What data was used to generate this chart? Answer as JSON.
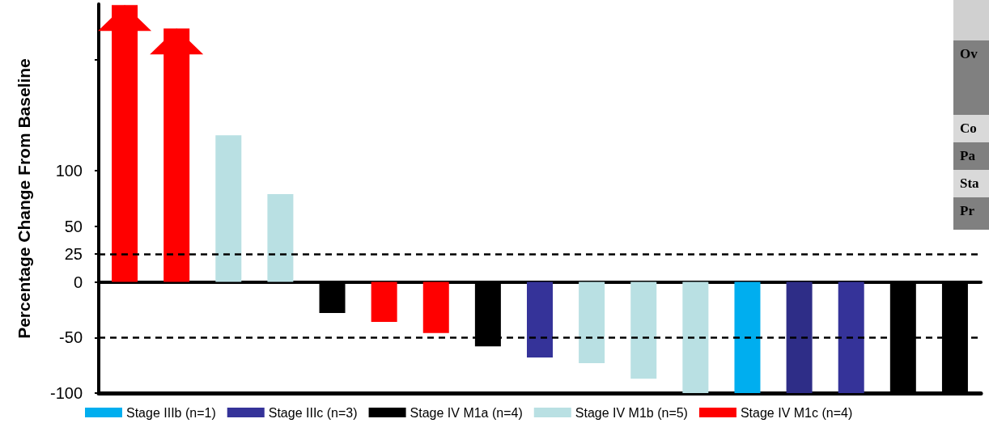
{
  "chart_data": {
    "type": "bar",
    "ylabel": "Percentage Change From Baseline",
    "categories": [
      null,
      null,
      null,
      null,
      null,
      null,
      null,
      null,
      null,
      null,
      null,
      null,
      null,
      null,
      null,
      null,
      null
    ],
    "stacked": true,
    "series": [
      {
        "name": "Stage IIIb (n=1)",
        "color": "#00aeef",
        "values": [
          null,
          null,
          null,
          null,
          null,
          null,
          null,
          null,
          null,
          null,
          null,
          null,
          -100,
          null,
          null,
          null,
          null
        ]
      },
      {
        "name": "Stage IIIc (n=3)",
        "color": "#353399",
        "colors": [
          null,
          null,
          null,
          null,
          null,
          null,
          null,
          null,
          "#353399",
          null,
          null,
          null,
          null,
          "#2e2d87",
          "#353399",
          null,
          null
        ],
        "values": [
          null,
          null,
          null,
          null,
          null,
          null,
          null,
          null,
          -68,
          null,
          null,
          null,
          null,
          -100,
          -100,
          null,
          null
        ]
      },
      {
        "name": "Stage IV M1a (n=4)",
        "color": "#000000",
        "values": [
          null,
          null,
          null,
          null,
          -28,
          null,
          null,
          -58,
          null,
          null,
          null,
          null,
          null,
          null,
          null,
          -100,
          -100
        ]
      },
      {
        "name": "Stage IV M1b (n=5)",
        "color": "#b9e0e3",
        "values": [
          null,
          null,
          132,
          79,
          null,
          null,
          null,
          null,
          null,
          -73,
          -87,
          -100,
          null,
          null,
          null,
          null,
          null
        ]
      },
      {
        "name": "Stage IV M1c (n=4)",
        "color": "#ff0000",
        "values": [
          249,
          228,
          null,
          null,
          null,
          -36,
          -46,
          null,
          null,
          null,
          null,
          null,
          null,
          null,
          null,
          null,
          null
        ]
      }
    ],
    "ylim": [
      -100,
      250
    ],
    "yticks": [
      -100,
      -50,
      0,
      25,
      50,
      100,
      {
        "value": 200,
        "label": null
      }
    ],
    "ref_lines": [
      {
        "axis": "y",
        "value": 25,
        "line_style": "dashed",
        "color": "#000000"
      },
      {
        "axis": "y",
        "value": -50,
        "line_style": "dashed",
        "color": "#000000"
      }
    ],
    "grid": false,
    "legend": "bottom",
    "annotations": [
      "Ov",
      "Co",
      "Pa",
      "Sta",
      "Pr"
    ]
  }
}
